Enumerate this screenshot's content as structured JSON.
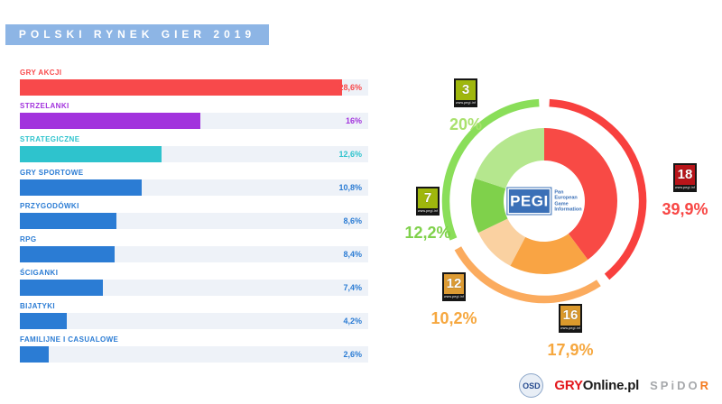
{
  "title": "POLSKI RYNEK GIER 2019",
  "colors": {
    "banner": "#8db5e5",
    "bar_track": "#eef2f8",
    "genre_blue": "#2b7cd4"
  },
  "bar_chart": {
    "scale_max": 30.9,
    "items": [
      {
        "label": "GRY AKCJI",
        "value": "28,6%",
        "pct": 28.6,
        "color": "#f8494b"
      },
      {
        "label": "STRZELANKI",
        "value": "16%",
        "pct": 16.0,
        "color": "#a233dd"
      },
      {
        "label": "STRATEGICZNE",
        "value": "12,6%",
        "pct": 12.6,
        "color": "#2ec3cd"
      },
      {
        "label": "GRY SPORTOWE",
        "value": "10,8%",
        "pct": 10.8,
        "color": "#2b7cd4"
      },
      {
        "label": "PRZYGODÓWKI",
        "value": "8,6%",
        "pct": 8.6,
        "color": "#2b7cd4"
      },
      {
        "label": "RPG",
        "value": "8,4%",
        "pct": 8.4,
        "color": "#2b7cd4"
      },
      {
        "label": "ŚCIGANKI",
        "value": "7,4%",
        "pct": 7.4,
        "color": "#2b7cd4"
      },
      {
        "label": "BIJATYKI",
        "value": "4,2%",
        "pct": 4.2,
        "color": "#2b7cd4"
      },
      {
        "label": "FAMILIJNE I CASUALOWE",
        "value": "2,6%",
        "pct": 2.6,
        "color": "#2b7cd4"
      }
    ]
  },
  "donut": {
    "gap_deg": 3,
    "segments": [
      {
        "name": "PEGI 18",
        "pct": 39.9,
        "color": "#f84a45"
      },
      {
        "name": "PEGI 16",
        "pct": 17.9,
        "color": "#f9a444"
      },
      {
        "name": "PEGI 12",
        "pct": 10.2,
        "color": "#fad1a1"
      },
      {
        "name": "PEGI 7",
        "pct": 12.2,
        "color": "#7fd14b"
      },
      {
        "name": "PEGI 3",
        "pct": 20.0,
        "color": "#b5e78e"
      }
    ],
    "outer_arcs": [
      {
        "segments": [
          0
        ],
        "color": "#f8403e"
      },
      {
        "segments": [
          1,
          2
        ],
        "color": "#fbab5e"
      },
      {
        "segments": [
          3,
          4
        ],
        "color": "#8ade59"
      }
    ]
  },
  "pegi": {
    "site_label": "www.pegi.info",
    "center": {
      "logo": "PEGI",
      "subtitle_lines": [
        "Pan",
        "European",
        "Game",
        "Information"
      ]
    },
    "ratings": [
      {
        "age": "3",
        "value": "20%",
        "pct": 20.0,
        "badge_color": "#9fb70d",
        "label_color": "#a9e16d"
      },
      {
        "age": "7",
        "value": "12,2%",
        "pct": 12.2,
        "badge_color": "#9fb70d",
        "label_color": "#7fd14b"
      },
      {
        "age": "12",
        "value": "10,2%",
        "pct": 10.2,
        "badge_color": "#dd9b33",
        "label_color": "#f6a73e"
      },
      {
        "age": "16",
        "value": "17,9%",
        "pct": 17.9,
        "badge_color": "#db992c",
        "label_color": "#f6a73e"
      },
      {
        "age": "18",
        "value": "39,9%",
        "pct": 39.9,
        "badge_color": "#b8151a",
        "label_color": "#f84745"
      }
    ]
  },
  "footer": {
    "osd": "OSD",
    "gry_red": "GRY",
    "gry_black": "Online.pl",
    "spidor_prefix": "SPiDO",
    "spidor_suffix": "R"
  },
  "chart_data": [
    {
      "type": "bar",
      "orientation": "horizontal",
      "title": "POLSKI RYNEK GIER 2019",
      "categories": [
        "GRY AKCJI",
        "STRZELANKI",
        "STRATEGICZNE",
        "GRY SPORTOWE",
        "PRZYGODÓWKI",
        "RPG",
        "ŚCIGANKI",
        "BIJATYKI",
        "FAMILIJNE I CASUALOWE"
      ],
      "values": [
        28.6,
        16,
        12.6,
        10.8,
        8.6,
        8.4,
        7.4,
        4.2,
        2.6
      ],
      "value_labels": [
        "28,6%",
        "16%",
        "12,6%",
        "10,8%",
        "8,6%",
        "8,4%",
        "7,4%",
        "4,2%",
        "2,6%"
      ],
      "unit": "%",
      "xlim": [
        0,
        30.9
      ],
      "grid": false,
      "legend": false
    },
    {
      "type": "pie",
      "subtype": "donut",
      "title": "PEGI — Pan European Game Information",
      "categories": [
        "PEGI 18",
        "PEGI 16",
        "PEGI 12",
        "PEGI 7",
        "PEGI 3"
      ],
      "values": [
        39.9,
        17.9,
        10.2,
        12.2,
        20
      ],
      "value_labels": [
        "39,9%",
        "17,9%",
        "10,2%",
        "12,2%",
        "20%"
      ],
      "start_angle_deg_from_top": 0,
      "direction": "clockwise",
      "legend": false
    }
  ]
}
